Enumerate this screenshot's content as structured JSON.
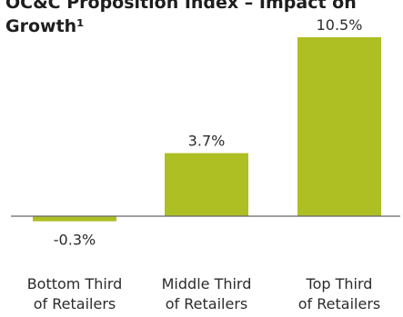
{
  "chart_data": {
    "type": "bar",
    "title_line1": "OC&C Proposition Index – Impact on",
    "title_line2": "Growth¹",
    "categories": [
      [
        "Bottom Third",
        "of Retailers"
      ],
      [
        "Middle Third",
        "of Retailers"
      ],
      [
        "Top Third",
        "of Retailers"
      ]
    ],
    "values": [
      -0.3,
      3.7,
      10.5
    ],
    "value_labels": [
      "-0.3%",
      "3.7%",
      "10.5%"
    ],
    "ylim": [
      -0.3,
      10.5
    ],
    "grid": false,
    "legend": "none",
    "colors": {
      "bar": "#adbf23",
      "axis": "#666666",
      "text": "#2b2b2b"
    }
  }
}
